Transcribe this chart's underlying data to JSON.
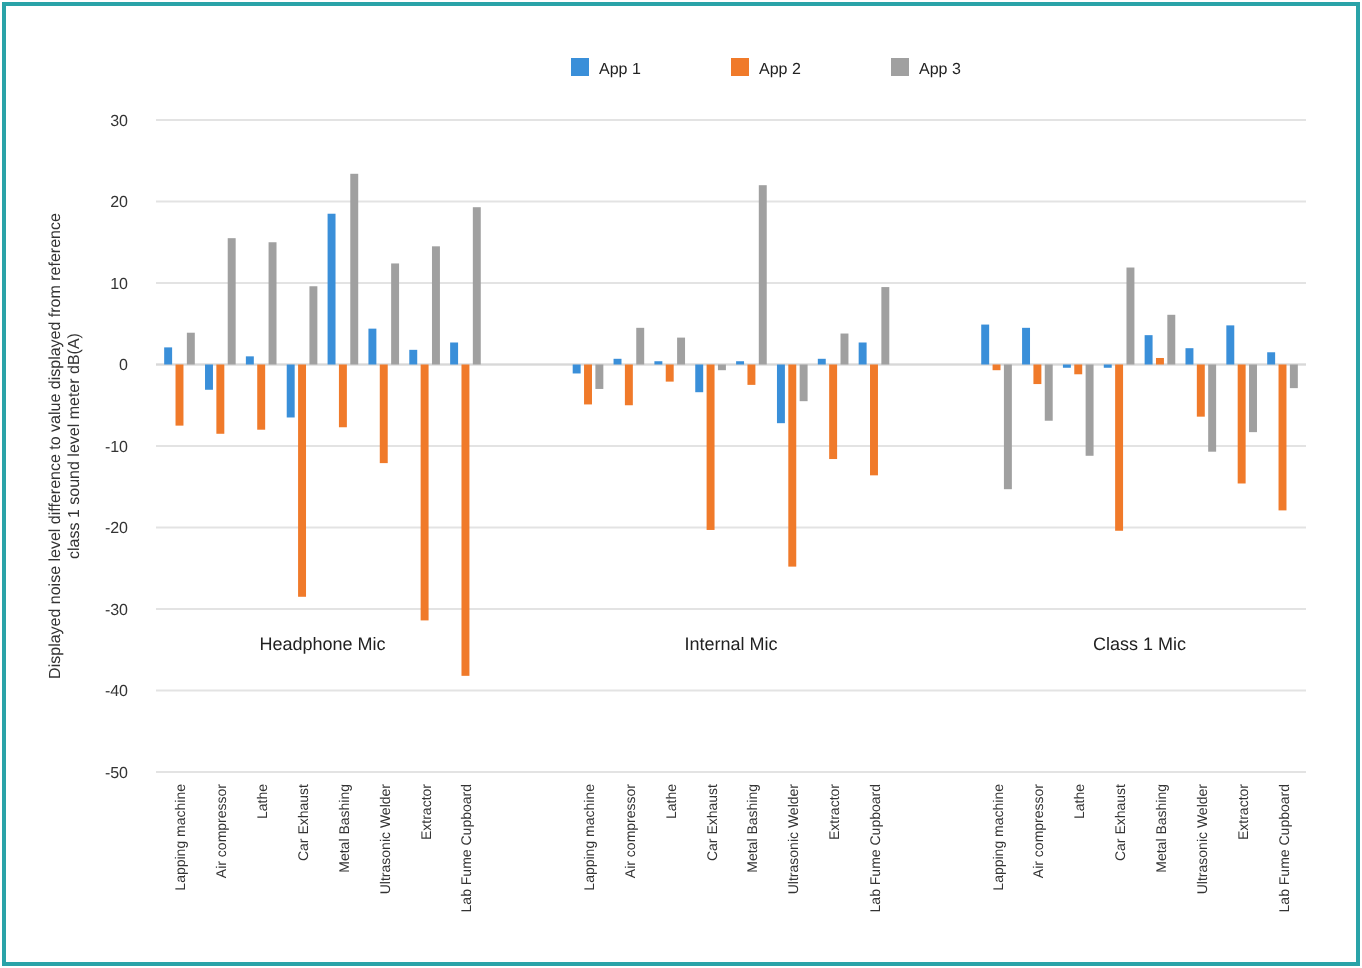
{
  "chart_data": {
    "type": "bar",
    "ylabel": "Displayed noise level difference to value displayed from reference class 1 sound level meter dB(A)",
    "categories": [
      "Lapping machine",
      "Air compressor",
      "Lathe",
      "Car Exhaust",
      "Metal Bashing",
      "Ultrasonic Welder",
      "Extractor",
      "Lab Fume Cupboard",
      null,
      null,
      "Lapping machine",
      "Air compressor",
      "Lathe",
      "Car Exhaust",
      "Metal Bashing",
      "Ultrasonic Welder",
      "Extractor",
      "Lab Fume Cupboard",
      null,
      null,
      "Lapping machine",
      "Air compressor",
      "Lathe",
      "Car Exhaust",
      "Metal Bashing",
      "Ultrasonic Welder",
      "Extractor",
      "Lab Fume Cupboard"
    ],
    "series": [
      {
        "name": "App 1",
        "color": "#3a8fd9",
        "values": [
          2.1,
          -3.1,
          1.0,
          -6.5,
          18.5,
          4.4,
          1.8,
          2.7,
          null,
          null,
          -1.1,
          0.7,
          0.4,
          -3.4,
          0.4,
          -7.2,
          0.7,
          2.7,
          null,
          null,
          4.9,
          4.5,
          -0.4,
          -0.4,
          3.6,
          2.0,
          4.8,
          1.5
        ]
      },
      {
        "name": "App 2",
        "color": "#f07a2a",
        "values": [
          -7.5,
          -8.5,
          -8.0,
          -28.5,
          -7.7,
          -12.1,
          -31.4,
          -38.2,
          null,
          null,
          -4.9,
          -5.0,
          -2.1,
          -20.3,
          -2.5,
          -24.8,
          -11.6,
          -13.6,
          null,
          null,
          -0.7,
          -2.4,
          -1.2,
          -20.4,
          0.8,
          -6.4,
          -14.6,
          -17.9
        ]
      },
      {
        "name": "App 3",
        "color": "#a0a0a0",
        "values": [
          3.9,
          15.5,
          15.0,
          9.6,
          23.4,
          12.4,
          14.5,
          19.3,
          null,
          null,
          -3.0,
          4.5,
          3.3,
          -0.7,
          22.0,
          -4.5,
          3.8,
          9.5,
          null,
          null,
          -15.3,
          -6.9,
          -11.2,
          11.9,
          6.1,
          -10.7,
          -8.3,
          -2.9
        ]
      }
    ],
    "annotations": [
      "Headphone Mic",
      "Internal Mic",
      "Class 1 Mic"
    ],
    "ylim": [
      -50,
      30
    ],
    "yticks": [
      -50,
      -40,
      -30,
      -20,
      -10,
      0,
      10,
      20,
      30
    ],
    "grid": "y",
    "legend": "top"
  }
}
